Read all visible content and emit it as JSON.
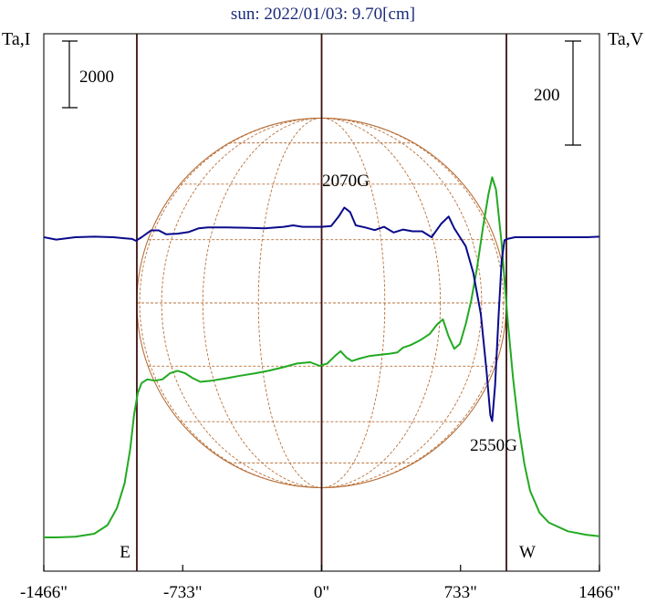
{
  "chart_data": {
    "type": "line",
    "title": "sun: 2022/01/03: 9.70[cm]",
    "left_axis_label": "Ta,I",
    "right_axis_label": "Ta,V",
    "left_scale_bar": "2000",
    "right_scale_bar": "200",
    "x_tick_labels": [
      "-1466\"",
      "-733\"",
      "0\"",
      "733\"",
      "1466\""
    ],
    "x_ticks": [
      -1466,
      -733,
      0,
      733,
      1466
    ],
    "xlim": [
      -1466,
      1466
    ],
    "limb_labels": [
      "E",
      "W"
    ],
    "limb_positions": [
      -975,
      975
    ],
    "annotations": [
      {
        "text": "2070G",
        "x": 130
      },
      {
        "text": "2550G",
        "x": 900
      }
    ],
    "grid": false,
    "series": [
      {
        "key": "I",
        "color": "#22aa22",
        "points": [
          [
            -1466,
            0.0
          ],
          [
            -1400,
            0.0
          ],
          [
            -1300,
            0.3
          ],
          [
            -1200,
            1.5
          ],
          [
            -1130,
            5.0
          ],
          [
            -1080,
            12.0
          ],
          [
            -1040,
            22.0
          ],
          [
            -1010,
            36.0
          ],
          [
            -990,
            50.0
          ],
          [
            -970,
            59.0
          ],
          [
            -950,
            63.0
          ],
          [
            -920,
            64.5
          ],
          [
            -880,
            64.0
          ],
          [
            -840,
            64.5
          ],
          [
            -800,
            67.0
          ],
          [
            -760,
            68.0
          ],
          [
            -720,
            67.0
          ],
          [
            -680,
            65.0
          ],
          [
            -640,
            63.5
          ],
          [
            -580,
            64.0
          ],
          [
            -500,
            65.0
          ],
          [
            -430,
            66.0
          ],
          [
            -350,
            67.0
          ],
          [
            -280,
            68.0
          ],
          [
            -200,
            69.5
          ],
          [
            -130,
            71.0
          ],
          [
            -60,
            71.5
          ],
          [
            -10,
            70.0
          ],
          [
            30,
            71.0
          ],
          [
            70,
            74.0
          ],
          [
            100,
            76.0
          ],
          [
            130,
            73.5
          ],
          [
            160,
            72.0
          ],
          [
            200,
            73.0
          ],
          [
            250,
            74.0
          ],
          [
            300,
            74.5
          ],
          [
            360,
            75.0
          ],
          [
            400,
            75.5
          ],
          [
            430,
            77.5
          ],
          [
            470,
            78.5
          ],
          [
            520,
            80.5
          ],
          [
            570,
            83.0
          ],
          [
            610,
            87.0
          ],
          [
            640,
            89.0
          ],
          [
            670,
            82.0
          ],
          [
            700,
            77.0
          ],
          [
            730,
            79.0
          ],
          [
            760,
            87.0
          ],
          [
            790,
            97.0
          ],
          [
            820,
            110.0
          ],
          [
            850,
            126.0
          ],
          [
            880,
            140.0
          ],
          [
            900,
            147.0
          ],
          [
            920,
            142.0
          ],
          [
            950,
            120.0
          ],
          [
            980,
            90.0
          ],
          [
            1010,
            65.0
          ],
          [
            1040,
            45.0
          ],
          [
            1070,
            30.0
          ],
          [
            1100,
            19.0
          ],
          [
            1150,
            10.0
          ],
          [
            1200,
            6.0
          ],
          [
            1300,
            2.5
          ],
          [
            1400,
            1.0
          ],
          [
            1466,
            0.5
          ]
        ]
      },
      {
        "key": "V",
        "color": "#0a0a8c",
        "points": [
          [
            -1466,
            0.0
          ],
          [
            -1400,
            -0.8
          ],
          [
            -1300,
            0.0
          ],
          [
            -1200,
            0.2
          ],
          [
            -1100,
            0.0
          ],
          [
            -1050,
            -0.3
          ],
          [
            -1000,
            -0.6
          ],
          [
            -980,
            -1.2
          ],
          [
            -950,
            0.0
          ],
          [
            -900,
            2.3
          ],
          [
            -860,
            2.3
          ],
          [
            -820,
            1.0
          ],
          [
            -760,
            1.2
          ],
          [
            -700,
            1.8
          ],
          [
            -650,
            3.0
          ],
          [
            -600,
            3.3
          ],
          [
            -500,
            3.3
          ],
          [
            -400,
            3.2
          ],
          [
            -300,
            3.0
          ],
          [
            -200,
            3.5
          ],
          [
            -150,
            4.0
          ],
          [
            -100,
            3.5
          ],
          [
            -50,
            3.5
          ],
          [
            0,
            3.5
          ],
          [
            50,
            3.8
          ],
          [
            90,
            7.0
          ],
          [
            120,
            10.0
          ],
          [
            150,
            8.5
          ],
          [
            180,
            4.0
          ],
          [
            230,
            3.3
          ],
          [
            280,
            2.4
          ],
          [
            330,
            3.5
          ],
          [
            380,
            1.6
          ],
          [
            430,
            2.6
          ],
          [
            480,
            2.0
          ],
          [
            530,
            2.0
          ],
          [
            580,
            0.0
          ],
          [
            630,
            4.5
          ],
          [
            670,
            7.0
          ],
          [
            700,
            3.0
          ],
          [
            730,
            0.0
          ],
          [
            760,
            -3.0
          ],
          [
            800,
            -12.0
          ],
          [
            840,
            -26.0
          ],
          [
            870,
            -45.0
          ],
          [
            890,
            -60.0
          ],
          [
            900,
            -62.0
          ],
          [
            915,
            -50.0
          ],
          [
            935,
            -25.0
          ],
          [
            950,
            -8.0
          ],
          [
            965,
            -1.0
          ],
          [
            985,
            -0.5
          ],
          [
            1020,
            0.0
          ],
          [
            1080,
            0.0
          ],
          [
            1200,
            0.0
          ],
          [
            1300,
            0.0
          ],
          [
            1400,
            0.0
          ],
          [
            1466,
            0.2
          ]
        ]
      }
    ]
  }
}
